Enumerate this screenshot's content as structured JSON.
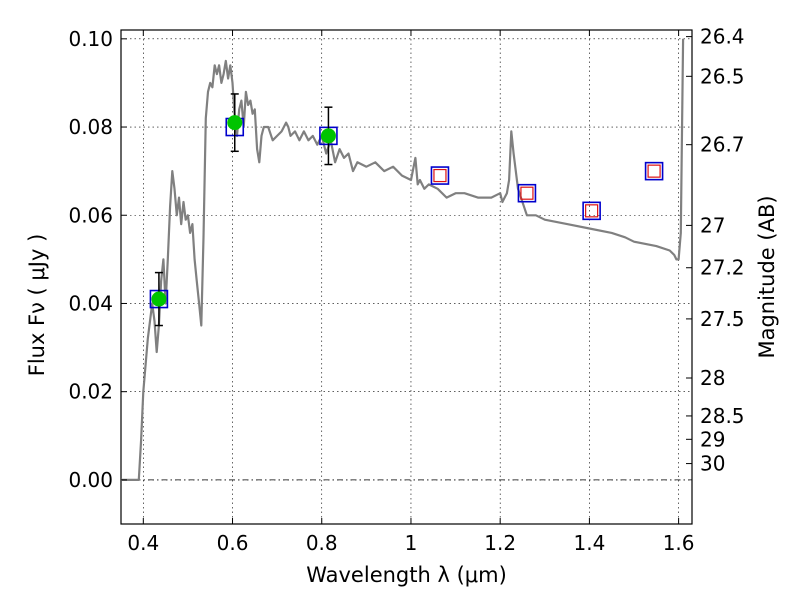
{
  "chart_data": {
    "type": "scatter",
    "xlabel": "Wavelength  λ (μm)",
    "ylabel": "Flux  Fν  ( μJy )",
    "ylabel_right": "Magnitude (AB)",
    "xlim": [
      0.35,
      1.63
    ],
    "ylim": [
      -0.01,
      0.102
    ],
    "x_ticks": [
      0.4,
      0.6,
      0.8,
      1.0,
      1.2,
      1.4,
      1.6
    ],
    "x_tick_labels": [
      "0.4",
      "0.6",
      "0.8",
      "1",
      "1.2",
      "1.4",
      "1.6"
    ],
    "y_ticks": [
      0.0,
      0.02,
      0.04,
      0.06,
      0.08,
      0.1
    ],
    "y_tick_labels": [
      "0.00",
      "0.02",
      "0.04",
      "0.06",
      "0.08",
      "0.10"
    ],
    "right_ticks": [
      {
        "label": "26.4",
        "flux": 0.1005
      },
      {
        "label": "26.5",
        "flux": 0.0915
      },
      {
        "label": "26.7",
        "flux": 0.076
      },
      {
        "label": "27",
        "flux": 0.0577
      },
      {
        "label": "27.2",
        "flux": 0.0481
      },
      {
        "label": "27.5",
        "flux": 0.0365
      },
      {
        "label": "28",
        "flux": 0.0231
      },
      {
        "label": "28.5",
        "flux": 0.0145
      },
      {
        "label": "29",
        "flux": 0.0092
      },
      {
        "label": "30",
        "flux": 0.0037
      }
    ],
    "grid": true,
    "zero_line": 0.0,
    "series": [
      {
        "kind": "line",
        "color": "#808080",
        "x": [
          0.35,
          0.39,
          0.395,
          0.4,
          0.41,
          0.42,
          0.425,
          0.43,
          0.435,
          0.44,
          0.445,
          0.45,
          0.455,
          0.46,
          0.465,
          0.47,
          0.475,
          0.48,
          0.485,
          0.49,
          0.495,
          0.5,
          0.505,
          0.51,
          0.515,
          0.52,
          0.525,
          0.53,
          0.535,
          0.54,
          0.545,
          0.55,
          0.555,
          0.56,
          0.565,
          0.57,
          0.575,
          0.58,
          0.585,
          0.59,
          0.595,
          0.6,
          0.605,
          0.61,
          0.615,
          0.62,
          0.625,
          0.63,
          0.635,
          0.64,
          0.645,
          0.65,
          0.655,
          0.66,
          0.665,
          0.67,
          0.68,
          0.69,
          0.7,
          0.71,
          0.72,
          0.725,
          0.73,
          0.74,
          0.75,
          0.76,
          0.77,
          0.78,
          0.79,
          0.8,
          0.81,
          0.82,
          0.83,
          0.84,
          0.85,
          0.86,
          0.87,
          0.88,
          0.9,
          0.92,
          0.94,
          0.96,
          0.98,
          1.0,
          1.01,
          1.015,
          1.02,
          1.03,
          1.04,
          1.06,
          1.08,
          1.1,
          1.12,
          1.15,
          1.18,
          1.2,
          1.205,
          1.21,
          1.215,
          1.22,
          1.225,
          1.23,
          1.24,
          1.26,
          1.28,
          1.3,
          1.35,
          1.4,
          1.45,
          1.48,
          1.5,
          1.55,
          1.58,
          1.59,
          1.595,
          1.6,
          1.605,
          1.61
        ],
        "y": [
          0.0,
          0.0,
          0.009,
          0.02,
          0.032,
          0.04,
          0.036,
          0.029,
          0.035,
          0.045,
          0.05,
          0.04,
          0.05,
          0.062,
          0.07,
          0.066,
          0.06,
          0.064,
          0.058,
          0.063,
          0.059,
          0.06,
          0.056,
          0.058,
          0.05,
          0.045,
          0.04,
          0.035,
          0.055,
          0.082,
          0.088,
          0.09,
          0.089,
          0.094,
          0.092,
          0.094,
          0.09,
          0.092,
          0.095,
          0.091,
          0.094,
          0.09,
          0.082,
          0.078,
          0.084,
          0.086,
          0.08,
          0.088,
          0.085,
          0.086,
          0.083,
          0.084,
          0.075,
          0.072,
          0.078,
          0.08,
          0.08,
          0.077,
          0.078,
          0.079,
          0.081,
          0.08,
          0.078,
          0.079,
          0.077,
          0.079,
          0.077,
          0.078,
          0.076,
          0.078,
          0.074,
          0.077,
          0.072,
          0.075,
          0.073,
          0.074,
          0.07,
          0.072,
          0.071,
          0.072,
          0.07,
          0.071,
          0.069,
          0.068,
          0.073,
          0.067,
          0.068,
          0.066,
          0.067,
          0.066,
          0.064,
          0.065,
          0.065,
          0.064,
          0.064,
          0.065,
          0.063,
          0.064,
          0.065,
          0.068,
          0.079,
          0.074,
          0.066,
          0.06,
          0.06,
          0.059,
          0.058,
          0.057,
          0.056,
          0.055,
          0.054,
          0.053,
          0.052,
          0.051,
          0.05,
          0.05,
          0.056,
          0.1
        ]
      },
      {
        "kind": "scatter",
        "marker": "square-blue",
        "x": [
          0.435,
          0.605,
          0.815,
          1.065,
          1.26,
          1.405,
          1.545
        ],
        "y": [
          0.041,
          0.08,
          0.078,
          0.069,
          0.065,
          0.061,
          0.07
        ]
      },
      {
        "kind": "scatter",
        "marker": "square-red-small",
        "x": [
          1.065,
          1.26,
          1.405,
          1.545
        ],
        "y": [
          0.069,
          0.065,
          0.061,
          0.07
        ]
      },
      {
        "kind": "scatter",
        "marker": "circle-green",
        "x": [
          0.435,
          0.605,
          0.815
        ],
        "y": [
          0.041,
          0.081,
          0.078
        ],
        "yerr": [
          0.006,
          0.0065,
          0.0065
        ]
      }
    ],
    "colors": {
      "line": "#808080",
      "square": "#0000cc",
      "inner_square": "#dd1111",
      "circle": "#00c400",
      "grid": "#000000"
    }
  }
}
